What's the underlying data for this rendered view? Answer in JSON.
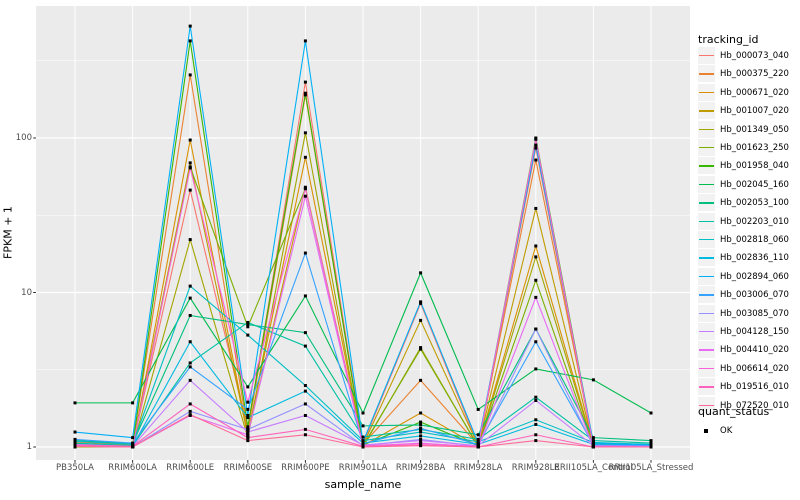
{
  "chart_data": {
    "type": "line",
    "title": "",
    "xlabel": "sample_name",
    "ylabel": "FPKM + 1",
    "y_scale": "log10",
    "y_ticks": [
      "1",
      "10",
      "100"
    ],
    "y_tick_values": [
      1,
      10,
      100
    ],
    "ylim": [
      1,
      560
    ],
    "grid": "on",
    "legend_position": "right",
    "categories": [
      "PB350LA",
      "RRIM600LA",
      "RRIM600LE",
      "RRIM600SE",
      "RRIM600PE",
      "RRIM901LA",
      "RRIM928BA",
      "RRIM928LA",
      "RRIM928LE",
      "RRII105LA_Control",
      "RRII105LA_Stressed"
    ],
    "series": [
      {
        "name": "Hb_000073_040",
        "color": "#F8766D",
        "values": [
          1.05,
          1.02,
          46,
          1.3,
          230,
          1.05,
          8.5,
          1.02,
          86,
          1.02,
          1.0
        ]
      },
      {
        "name": "Hb_000375_220",
        "color": "#EA8331",
        "values": [
          1.08,
          1.03,
          256,
          1.25,
          190,
          1.04,
          2.7,
          1.03,
          72,
          1.03,
          1.01
        ]
      },
      {
        "name": "Hb_000671_020",
        "color": "#D89000",
        "values": [
          1.02,
          1.0,
          97,
          1.2,
          75,
          1.02,
          1.66,
          1.01,
          20,
          1.01,
          1.0
        ]
      },
      {
        "name": "Hb_001007_020",
        "color": "#C09B00",
        "values": [
          1.04,
          1.01,
          69,
          1.18,
          48,
          1.03,
          6.6,
          1.02,
          35,
          1.02,
          1.0
        ]
      },
      {
        "name": "Hb_001349_050",
        "color": "#A3A500",
        "values": [
          1.0,
          1.0,
          22,
          1.15,
          108,
          1.0,
          4.4,
          1.0,
          17,
          1.0,
          1.0
        ]
      },
      {
        "name": "Hb_001623_250",
        "color": "#7CAE00",
        "values": [
          1.03,
          1.0,
          65,
          6.0,
          47,
          1.02,
          4.3,
          1.01,
          12,
          1.0,
          1.0
        ]
      },
      {
        "name": "Hb_001958_040",
        "color": "#39B600",
        "values": [
          1.05,
          1.02,
          425,
          1.35,
          195,
          1.03,
          1.45,
          1.02,
          100,
          1.05,
          1.02
        ]
      },
      {
        "name": "Hb_002045_160",
        "color": "#00BB4E",
        "values": [
          1.93,
          1.93,
          9.2,
          2.45,
          9.5,
          1.66,
          13.4,
          1.75,
          3.2,
          2.72,
          1.66
        ]
      },
      {
        "name": "Hb_002053_100",
        "color": "#00BF7D",
        "values": [
          1.1,
          1.05,
          7.1,
          6.2,
          5.5,
          1.37,
          1.39,
          1.2,
          5.8,
          1.15,
          1.1
        ]
      },
      {
        "name": "Hb_002203_010",
        "color": "#00C1A3",
        "values": [
          1.06,
          1.02,
          3.5,
          6.4,
          4.5,
          1.16,
          1.3,
          1.12,
          2.1,
          1.1,
          1.06
        ]
      },
      {
        "name": "Hb_002818_060",
        "color": "#00BFC4",
        "values": [
          1.09,
          1.04,
          11,
          5.3,
          2.5,
          1.1,
          1.25,
          1.08,
          1.5,
          1.07,
          1.04
        ]
      },
      {
        "name": "Hb_002836_110",
        "color": "#00BAE0",
        "values": [
          1.04,
          1.01,
          4.8,
          1.55,
          2.3,
          1.06,
          1.18,
          1.04,
          1.4,
          1.04,
          1.02
        ]
      },
      {
        "name": "Hb_002894_060",
        "color": "#00B0F6",
        "values": [
          1.25,
          1.15,
          530,
          1.6,
          425,
          1.08,
          8.7,
          1.06,
          90,
          1.06,
          1.03
        ]
      },
      {
        "name": "Hb_003006_070",
        "color": "#35A2FF",
        "values": [
          1.12,
          1.06,
          3.3,
          1.75,
          18,
          1.05,
          1.32,
          1.04,
          4.8,
          1.03,
          1.02
        ]
      },
      {
        "name": "Hb_003085_070",
        "color": "#9590FF",
        "values": [
          1.02,
          1.0,
          1.7,
          1.3,
          1.9,
          1.02,
          1.12,
          1.01,
          5.8,
          1.01,
          1.0
        ]
      },
      {
        "name": "Hb_004128_150",
        "color": "#C77CFF",
        "values": [
          1.04,
          1.01,
          2.7,
          1.25,
          1.6,
          1.03,
          1.1,
          1.02,
          2.0,
          1.02,
          1.01
        ]
      },
      {
        "name": "Hb_004410_020",
        "color": "#E76BF3",
        "values": [
          1.01,
          1.0,
          1.6,
          1.2,
          42,
          1.01,
          1.06,
          1.0,
          9.3,
          1.0,
          1.0
        ]
      },
      {
        "name": "Hb_006614_020",
        "color": "#FA62DB",
        "values": [
          1.02,
          1.0,
          64,
          1.95,
          47,
          1.02,
          1.05,
          1.01,
          98,
          1.01,
          1.0
        ]
      },
      {
        "name": "Hb_019516_010",
        "color": "#FF62BC",
        "values": [
          1.03,
          1.01,
          1.9,
          1.15,
          1.3,
          1.01,
          1.03,
          1.0,
          1.2,
          1.0,
          1.0
        ]
      },
      {
        "name": "Hb_072520_010",
        "color": "#FF6A98",
        "values": [
          1.01,
          1.0,
          1.62,
          1.1,
          1.2,
          1.0,
          1.02,
          1.0,
          1.1,
          1.0,
          1.0
        ]
      }
    ],
    "legend_title": "tracking_id",
    "quant_legend": {
      "title": "quant_status",
      "value": "OK"
    },
    "marker": {
      "shape": "square",
      "color": "#000000"
    },
    "panel_bg": "#EBEBEB",
    "grid_color": "#FFFFFF",
    "tick_label_color": "#4D4D4D"
  }
}
